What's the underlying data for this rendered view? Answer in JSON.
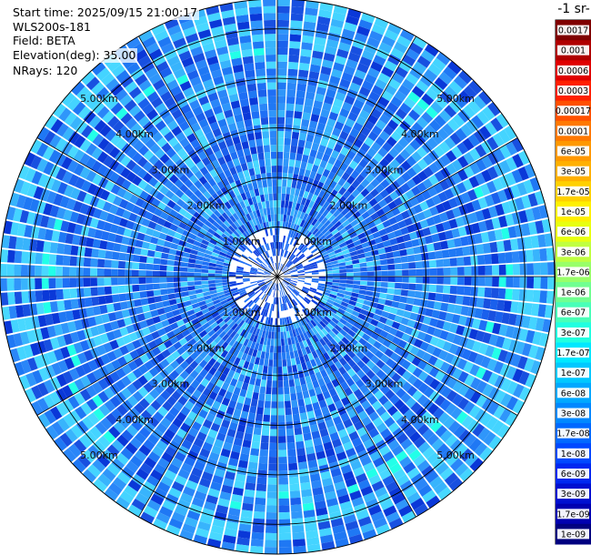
{
  "info": {
    "start_time": "Start time: 2025/09/15 21:00:17",
    "instrument": "WLS200s-181",
    "field": "Field: BETA",
    "elevation": "Elevation(deg): 35.00",
    "nrays": "NRays: 120"
  },
  "chart_data": {
    "type": "heatmap",
    "projection": "polar",
    "rays": 120,
    "range_max_km": 5.6,
    "range_rings_km": [
      1,
      2,
      3,
      4,
      5
    ],
    "ring_labels": [
      "1.00km",
      "2.00km",
      "3.00km",
      "4.00km",
      "5.00km"
    ],
    "colorbar": {
      "unit_label": "-1 sr-",
      "tick_labels": [
        "0.0017",
        "0.001",
        "0.0006",
        "0.0003",
        "0.00017",
        "0.0001",
        "6e-05",
        "3e-05",
        "1.7e-05",
        "1e-05",
        "6e-06",
        "3e-06",
        "1.7e-06",
        "1e-06",
        "6e-07",
        "3e-07",
        "1.7e-07",
        "1e-07",
        "6e-08",
        "3e-08",
        "1.7e-08",
        "1e-08",
        "6e-09",
        "3e-09",
        "1.7e-09",
        "1e-09"
      ],
      "colors": [
        "#800000",
        "#b00000",
        "#e00000",
        "#ff2000",
        "#ff5000",
        "#ff7800",
        "#ff9800",
        "#ffb000",
        "#ffd000",
        "#fff000",
        "#e8ff10",
        "#c0ff40",
        "#98ff68",
        "#70ff90",
        "#48ffb8",
        "#20ffe0",
        "#00e8ff",
        "#00c8ff",
        "#00a8ff",
        "#0088ff",
        "#0068ff",
        "#0048ff",
        "#0028f0",
        "#0010d0",
        "#0000b0",
        "#000080"
      ]
    }
  }
}
